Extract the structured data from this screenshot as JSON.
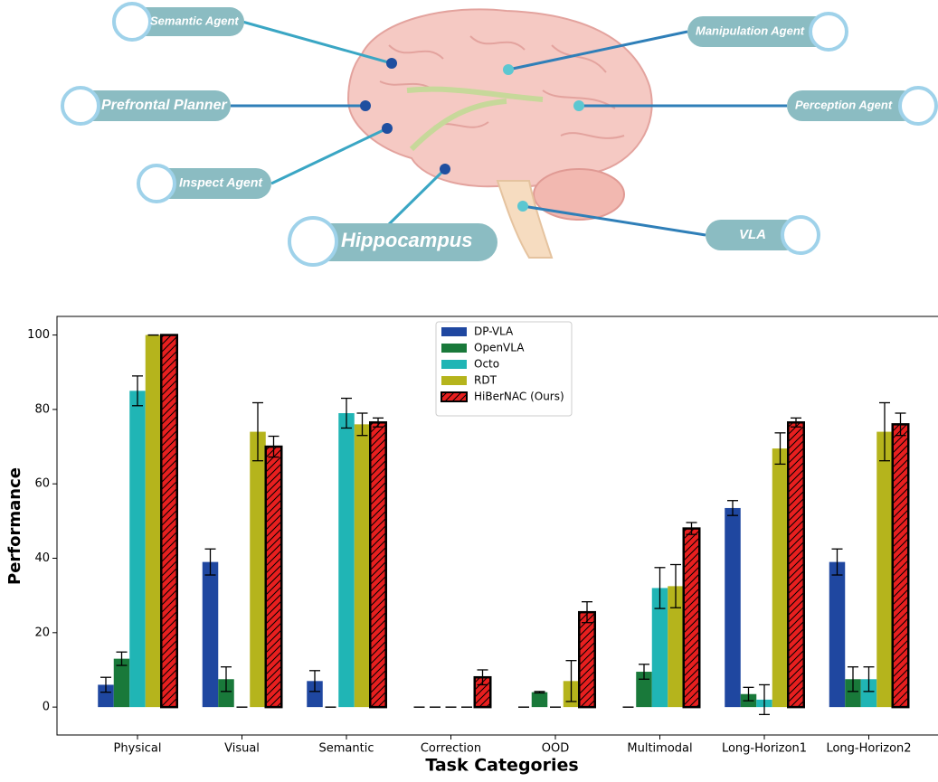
{
  "diagram": {
    "labels": [
      "Semantic Agent",
      "Prefrontal Planner",
      "Inspect  Agent",
      "Hippocampus",
      "Manipulation Agent",
      "Perception Agent",
      "VLA"
    ]
  },
  "chart_data": {
    "type": "bar",
    "y_label": "Performance",
    "x_label": "Task Categories",
    "categories": [
      "Physical",
      "Visual",
      "Semantic",
      "Correction",
      "OOD",
      "Multimodal",
      "Long-Horizon1",
      "Long-Horizon2"
    ],
    "series": [
      {
        "name": "DP-VLA",
        "color": "#1f47a0",
        "values": [
          6,
          39,
          7,
          0,
          0,
          0,
          53.5,
          39
        ],
        "errors": [
          2,
          3.5,
          2.8,
          0,
          0,
          0,
          2,
          3.5
        ]
      },
      {
        "name": "OpenVLA",
        "color": "#19793a",
        "values": [
          13,
          7.5,
          0,
          0,
          4,
          9.5,
          3.5,
          7.5
        ],
        "errors": [
          1.8,
          3.3,
          0,
          0,
          0.2,
          2,
          1.8,
          3.3
        ]
      },
      {
        "name": "Octo",
        "color": "#20b5b5",
        "values": [
          85,
          0,
          79,
          0,
          0,
          32,
          2,
          7.5
        ],
        "errors": [
          4,
          0,
          4,
          0,
          0,
          5.5,
          4,
          3.3
        ]
      },
      {
        "name": "RDT",
        "color": "#b5b41c",
        "values": [
          100,
          74,
          76,
          0,
          7,
          32.5,
          69.5,
          74
        ],
        "errors": [
          0,
          7.8,
          3,
          0,
          5.5,
          5.8,
          4.2,
          7.8
        ]
      },
      {
        "name": "HiBerNAC (Ours)",
        "color": "#e81f1f",
        "values": [
          100,
          70,
          76.5,
          8,
          25.5,
          48,
          76.5,
          76
        ],
        "errors": [
          0,
          2.8,
          1.2,
          2,
          2.8,
          1.6,
          1.2,
          3
        ],
        "hatch": true,
        "edgecolor": "#000000"
      }
    ],
    "ylim": [
      -7.5,
      105
    ],
    "yticks": [
      0,
      20,
      40,
      60,
      80,
      100
    ],
    "legend": "upper center",
    "grid": false
  }
}
